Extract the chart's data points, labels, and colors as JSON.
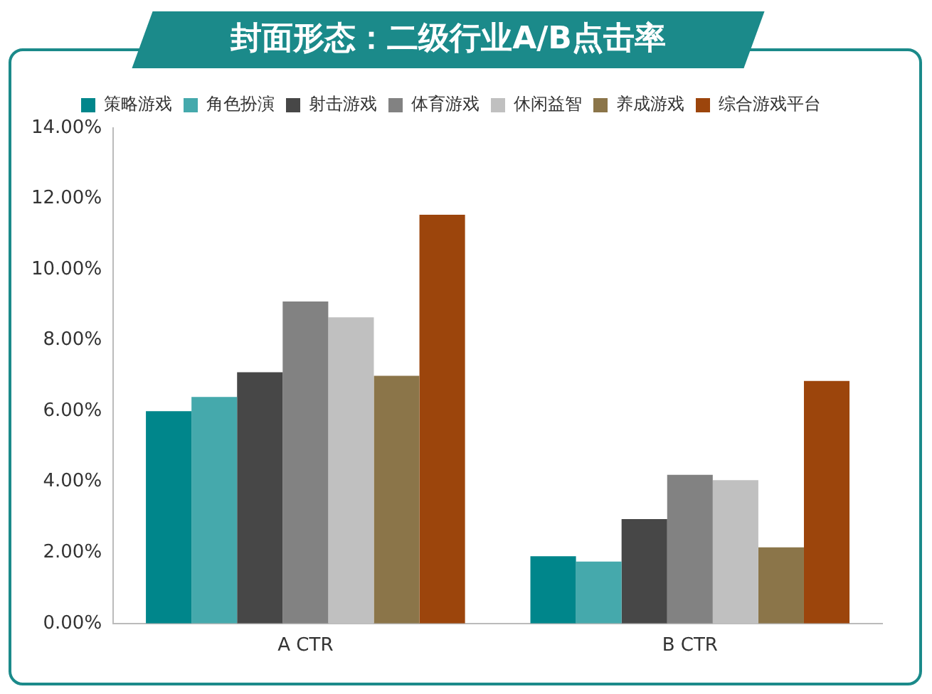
{
  "chart_data": {
    "type": "bar",
    "title": "封面形态：二级行业A/B点击率",
    "categories": [
      "A CTR",
      "B CTR"
    ],
    "series": [
      {
        "name": "策略游戏",
        "color": "#00868b",
        "values": [
          6.0,
          1.9
        ]
      },
      {
        "name": "角色扮演",
        "color": "#45a9ac",
        "values": [
          6.4,
          1.75
        ]
      },
      {
        "name": "射击游戏",
        "color": "#474747",
        "values": [
          7.1,
          2.95
        ]
      },
      {
        "name": "体育游戏",
        "color": "#828282",
        "values": [
          9.1,
          4.2
        ]
      },
      {
        "name": "休闲益智",
        "color": "#c0c0c0",
        "values": [
          8.65,
          4.05
        ]
      },
      {
        "name": "养成游戏",
        "color": "#8b7549",
        "values": [
          7.0,
          2.15
        ]
      },
      {
        "name": "综合游戏平台",
        "color": "#9c450c",
        "values": [
          11.55,
          6.85
        ]
      }
    ],
    "ylim": [
      0,
      14
    ],
    "yticks": [
      {
        "value": 0,
        "label": "0.00%"
      },
      {
        "value": 2,
        "label": "2.00%"
      },
      {
        "value": 4,
        "label": "4.00%"
      },
      {
        "value": 6,
        "label": "6.00%"
      },
      {
        "value": 8,
        "label": "8.00%"
      },
      {
        "value": 10,
        "label": "10.00%"
      },
      {
        "value": 12,
        "label": "12.00%"
      },
      {
        "value": 14,
        "label": "14.00%"
      }
    ],
    "grid": false,
    "legend": "top"
  }
}
